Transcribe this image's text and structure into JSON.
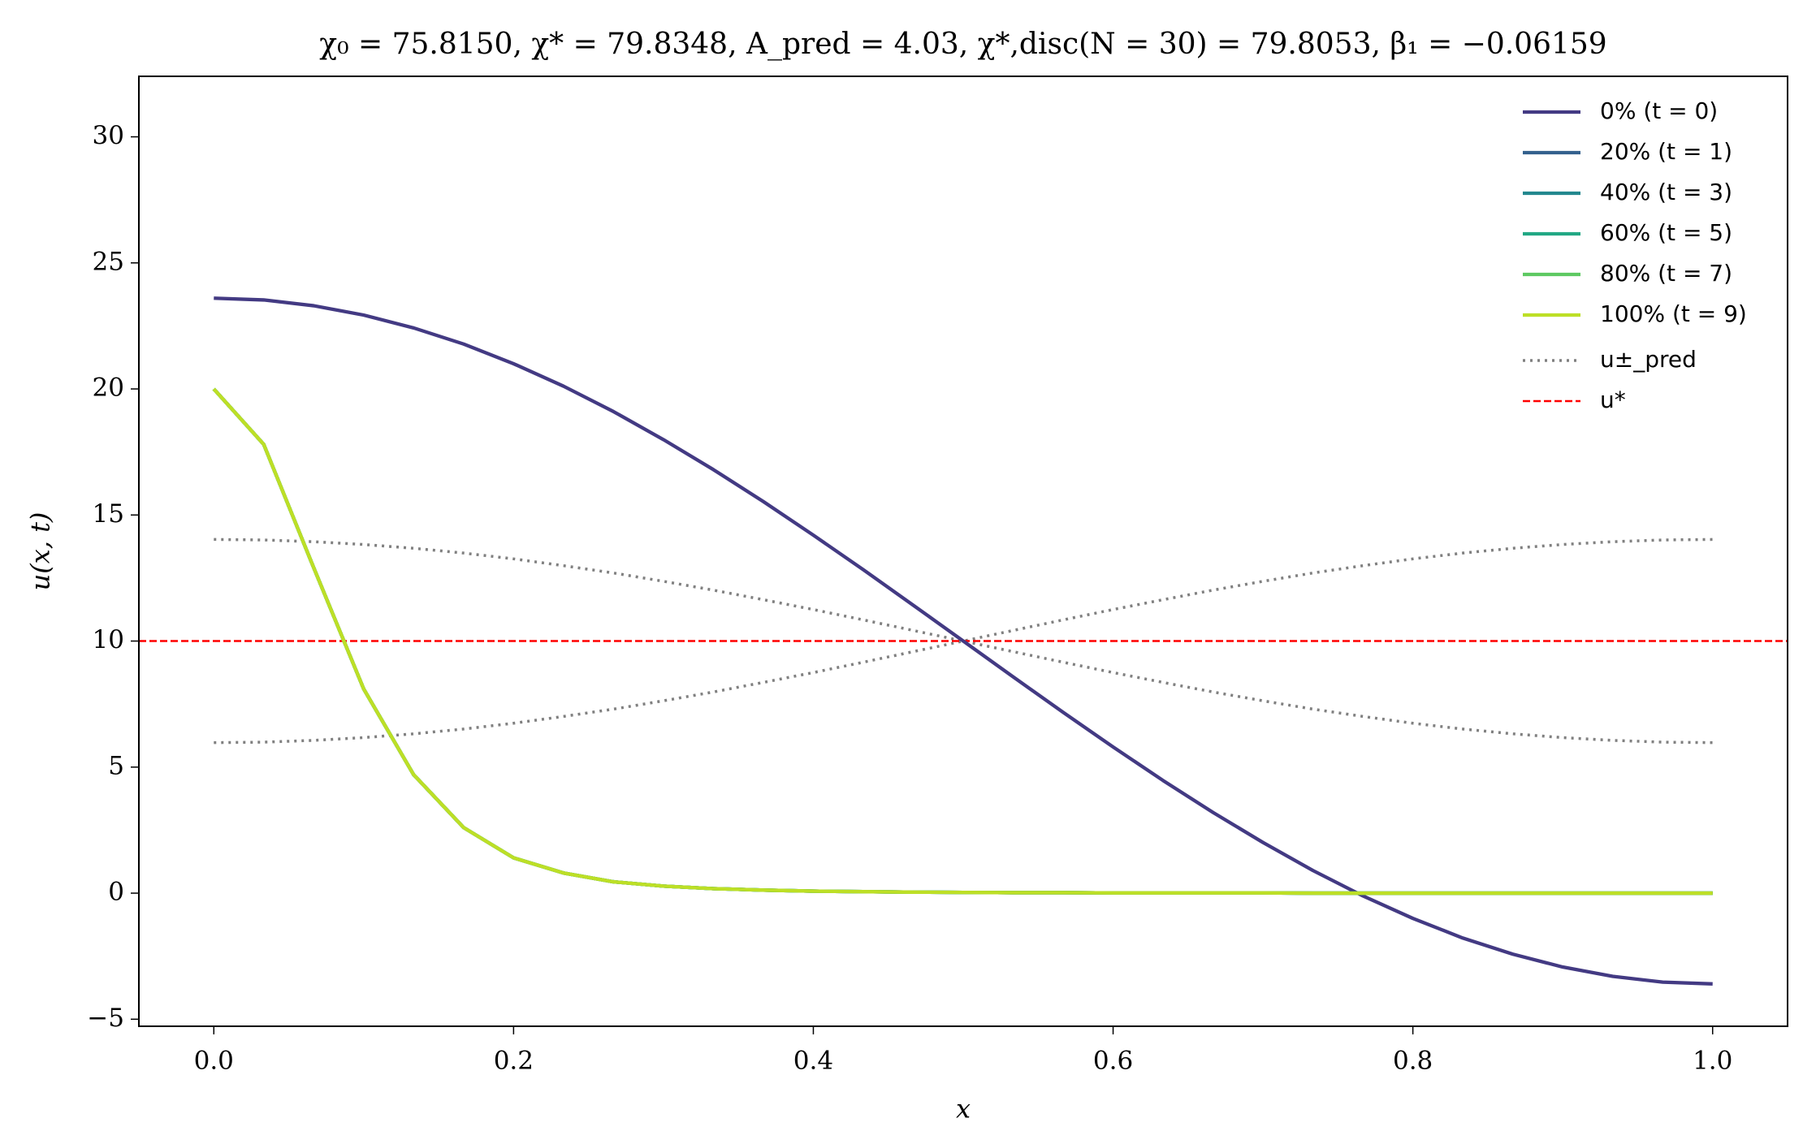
{
  "chart_data": {
    "type": "line",
    "title": "χ₀ = 75.8150,  χ* = 79.8348,  A_pred = 4.03,  χ*,disc(N = 30) = 79.8053,  β₁ = −0.06159",
    "xlabel": "x",
    "ylabel": "u(x, t)",
    "x": [
      0,
      0.0333,
      0.0667,
      0.1,
      0.1333,
      0.1667,
      0.2,
      0.2333,
      0.2667,
      0.3,
      0.3333,
      0.3667,
      0.4,
      0.4333,
      0.4667,
      0.5,
      0.5333,
      0.5667,
      0.6,
      0.6333,
      0.6667,
      0.7,
      0.7333,
      0.7667,
      0.8,
      0.8333,
      0.8667,
      0.9,
      0.9333,
      0.9667,
      1
    ],
    "series": [
      {
        "name": "0% (t = 0)",
        "color": "#433a83",
        "values": [
          23.6,
          23.53,
          23.3,
          22.93,
          22.42,
          21.78,
          21.0,
          20.11,
          19.1,
          17.99,
          16.8,
          15.53,
          14.2,
          12.83,
          11.42,
          10.0,
          8.58,
          7.17,
          5.8,
          4.47,
          3.2,
          2.01,
          0.9,
          -0.11,
          -1.0,
          -1.78,
          -2.42,
          -2.93,
          -3.3,
          -3.53,
          -3.6
        ]
      },
      {
        "name": "20% (t = 1)",
        "color": "#34618d",
        "values": [
          20,
          17.8,
          12.9,
          8.1,
          4.7,
          2.6,
          1.4,
          0.8,
          0.45,
          0.28,
          0.18,
          0.12,
          0.08,
          0.06,
          0.04,
          0.03,
          0.02,
          0.02,
          0.01,
          0.01,
          0.01,
          0.01,
          0,
          0,
          0,
          0,
          0,
          0,
          0,
          0,
          0
        ]
      },
      {
        "name": "40% (t = 3)",
        "color": "#23888e",
        "values": [
          20,
          17.8,
          12.9,
          8.1,
          4.7,
          2.6,
          1.4,
          0.8,
          0.45,
          0.28,
          0.18,
          0.12,
          0.08,
          0.06,
          0.04,
          0.03,
          0.02,
          0.02,
          0.01,
          0.01,
          0.01,
          0.01,
          0,
          0,
          0,
          0,
          0,
          0,
          0,
          0,
          0
        ]
      },
      {
        "name": "60% (t = 5)",
        "color": "#22a884",
        "values": [
          20,
          17.8,
          12.9,
          8.1,
          4.7,
          2.6,
          1.4,
          0.8,
          0.45,
          0.28,
          0.18,
          0.12,
          0.08,
          0.06,
          0.04,
          0.03,
          0.02,
          0.02,
          0.01,
          0.01,
          0.01,
          0.01,
          0,
          0,
          0,
          0,
          0,
          0,
          0,
          0,
          0
        ]
      },
      {
        "name": "80% (t = 7)",
        "color": "#5ec962",
        "values": [
          20,
          17.8,
          12.9,
          8.1,
          4.7,
          2.6,
          1.4,
          0.8,
          0.45,
          0.28,
          0.18,
          0.12,
          0.08,
          0.06,
          0.04,
          0.03,
          0.02,
          0.02,
          0.01,
          0.01,
          0.01,
          0.01,
          0,
          0,
          0,
          0,
          0,
          0,
          0,
          0,
          0
        ]
      },
      {
        "name": "100% (t = 9)",
        "color": "#bddf26",
        "values": [
          20,
          17.8,
          12.9,
          8.1,
          4.7,
          2.6,
          1.4,
          0.8,
          0.45,
          0.28,
          0.18,
          0.12,
          0.08,
          0.06,
          0.04,
          0.03,
          0.02,
          0.02,
          0.01,
          0.01,
          0.01,
          0.01,
          0,
          0,
          0,
          0,
          0,
          0,
          0,
          0,
          0
        ]
      }
    ],
    "bounds": {
      "name": "u±_pred",
      "color": "#808080",
      "upper": [
        14.03,
        14.01,
        13.94,
        13.83,
        13.68,
        13.49,
        13.26,
        12.99,
        12.7,
        12.37,
        12.02,
        11.64,
        11.25,
        10.84,
        10.42,
        10.0,
        9.58,
        9.16,
        8.75,
        8.36,
        7.98,
        7.63,
        7.3,
        7.01,
        6.74,
        6.51,
        6.32,
        6.17,
        6.06,
        5.99,
        5.97
      ],
      "lower": [
        5.97,
        5.99,
        6.06,
        6.17,
        6.32,
        6.51,
        6.74,
        7.01,
        7.3,
        7.63,
        7.98,
        8.36,
        8.75,
        9.16,
        9.58,
        10.0,
        10.42,
        10.84,
        11.25,
        11.64,
        12.02,
        12.37,
        12.7,
        12.99,
        13.26,
        13.49,
        13.68,
        13.83,
        13.94,
        14.01,
        14.03
      ]
    },
    "hline": {
      "name": "u*",
      "color": "#ff0000",
      "value": 10
    },
    "xlim": [
      -0.05,
      1.05
    ],
    "xticks": [
      {
        "value": 0,
        "label": "0.0"
      },
      0.2,
      0.4,
      0.6,
      0.8,
      {
        "value": 1,
        "label": "1.0"
      }
    ],
    "ylim": [
      -5.28,
      32.4
    ],
    "yticks": [
      {
        "value": -5,
        "label": "−5"
      },
      0,
      5,
      10,
      15,
      20,
      25,
      30
    ],
    "legend": "upper right",
    "grid": false
  }
}
